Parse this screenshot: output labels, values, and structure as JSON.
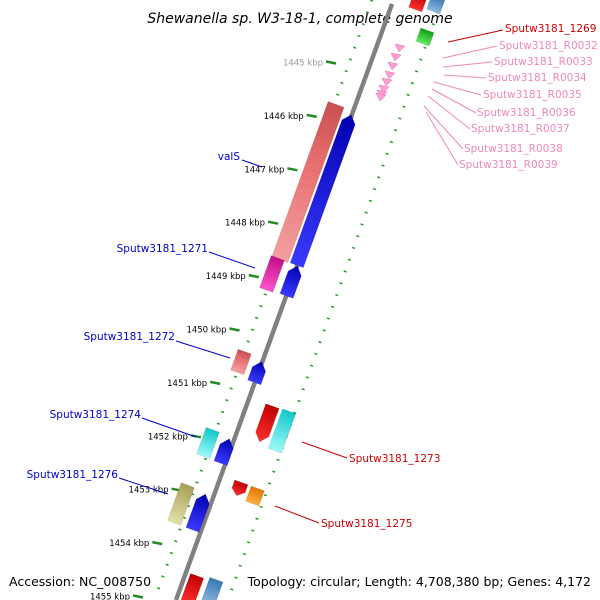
{
  "title": "Shewanella sp. W3-18-1, complete genome",
  "footer": {
    "accession": "Accession: NC_008750",
    "summary": "Topology: circular; Length: 4,708,380 bp; Genes: 4,172"
  },
  "colors": {
    "backbone": "#808080",
    "ticks": "#228B22",
    "tick_label": "#000000",
    "label_left": "#0000CC",
    "label_right": "#CC0000",
    "label_rna": "#EE88BB"
  },
  "chart_data": {
    "type": "genome_map",
    "ruler_kbp": [
      1445,
      1446,
      1447,
      1448,
      1449,
      1450,
      1451,
      1452,
      1453,
      1454,
      1455
    ],
    "ruler_labels": [
      "1445 kbp",
      "1446 kbp",
      "1447 kbp",
      "1448 kbp",
      "1449 kbp",
      "1450 kbp",
      "1451 kbp",
      "1452 kbp",
      "1453 kbp",
      "1454 kbp",
      "1455 kbp"
    ],
    "left_labels": [
      "valS",
      "Sputw3181_1271",
      "Sputw3181_1272",
      "Sputw3181_1274",
      "Sputw3181_1276"
    ],
    "right_labels": [
      "Sputw3181_1269",
      "Sputw3181_1273",
      "Sputw3181_1275"
    ],
    "rna_labels": [
      "Sputw3181_R0032",
      "Sputw3181_R0033",
      "Sputw3181_R0034",
      "Sputw3181_R0035",
      "Sputw3181_R0036",
      "Sputw3181_R0037",
      "Sputw3181_R0038",
      "Sputw3181_R0039"
    ]
  }
}
